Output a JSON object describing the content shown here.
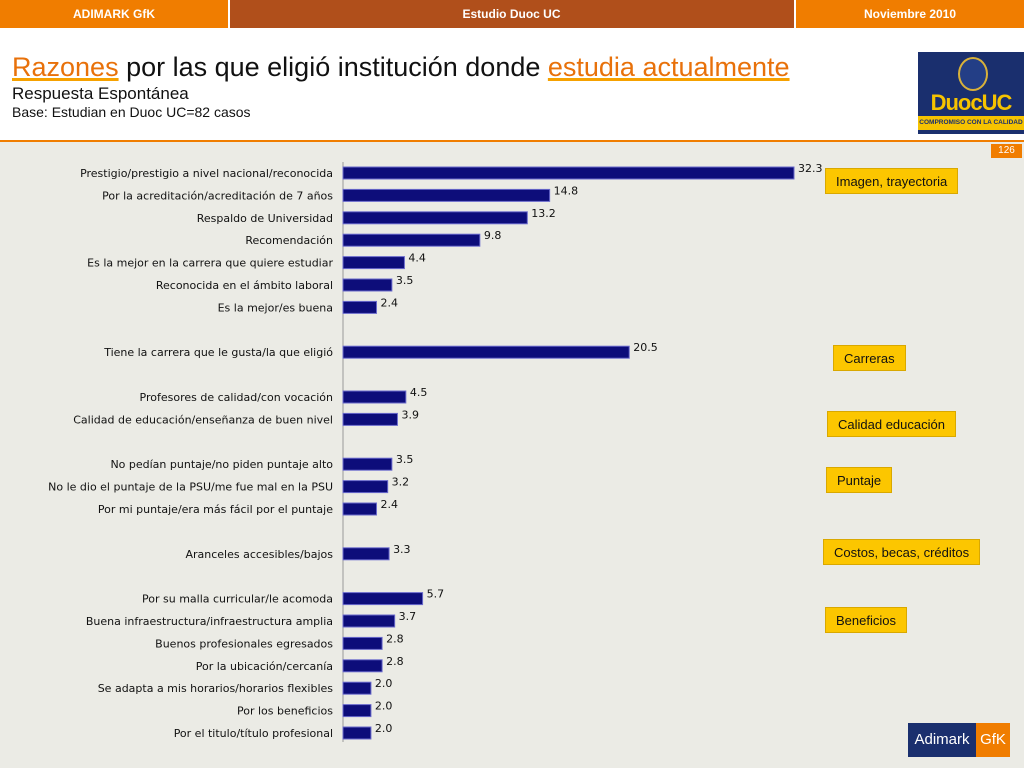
{
  "topbar": {
    "left": "ADIMARK GfK",
    "center": "Estudio Duoc UC",
    "right": "Noviembre 2010"
  },
  "header": {
    "title_part1": "Razones",
    "title_part2": " por las que eligió institución donde ",
    "title_part3": "estudia actualmente",
    "subtitle": "Respuesta Espontánea",
    "base": "Base: Estudian en Duoc UC=82 casos"
  },
  "logo": {
    "word": "DuocUC",
    "tagline": "COMPROMISO CON LA CALIDAD"
  },
  "page_number": "126",
  "groups": [
    {
      "label": "Imagen, trayectoria"
    },
    {
      "label": "Carreras"
    },
    {
      "label": "Calidad educación"
    },
    {
      "label": "Puntaje"
    },
    {
      "label": "Costos, becas, créditos"
    },
    {
      "label": "Beneficios"
    }
  ],
  "footer_logo": {
    "part_a": "Adimark",
    "part_b": "GfK"
  },
  "colors": {
    "orange": "#f07d00",
    "brown": "#b04f1b",
    "bar": "#0d0d7a",
    "group_box": "#fcc600",
    "background": "#ebebe5"
  },
  "chart_data": {
    "type": "bar",
    "orientation": "horizontal",
    "xlim": [
      0,
      32.3
    ],
    "categories": [
      "Prestigio/prestigio a nivel nacional/reconocida",
      "Por la acreditación/acreditación de 7 años",
      "Respaldo de Universidad",
      "Recomendación",
      "Es la mejor en la carrera que quiere estudiar",
      "Reconocida en el ámbito laboral",
      "Es la mejor/es buena",
      "",
      "Tiene la carrera que le gusta/la que eligió",
      "",
      "Profesores de calidad/con vocación",
      "Calidad de educación/enseñanza de buen nivel",
      "",
      "No pedían puntaje/no piden puntaje alto",
      "No le dio el puntaje de la PSU/me fue mal en la PSU",
      "Por mi puntaje/era más fácil por el puntaje",
      "",
      "Aranceles accesibles/bajos",
      "",
      "Por su malla curricular/le acomoda",
      "Buena infraestructura/infraestructura amplia",
      "Buenos profesionales egresados",
      "Por la ubicación/cercanía",
      "Se adapta a mis horarios/horarios flexibles",
      "Por los beneficios",
      "Por el titulo/título profesional"
    ],
    "values": [
      32.3,
      14.8,
      13.2,
      9.8,
      4.4,
      3.5,
      2.4,
      null,
      20.5,
      null,
      4.5,
      3.9,
      null,
      3.5,
      3.2,
      2.4,
      null,
      3.3,
      null,
      5.7,
      3.7,
      2.8,
      2.8,
      2.0,
      2.0,
      2.0
    ],
    "value_labels": [
      "32.3",
      "14.8",
      "13.2",
      "9.8",
      "4.4",
      "3.5",
      "2.4",
      "",
      "20.5",
      "",
      "4.5",
      "3.9",
      "",
      "3.5",
      "3.2",
      "2.4",
      "",
      "3.3",
      "",
      "5.7",
      "3.7",
      "2.8",
      "2.8",
      "2.0",
      "2.0",
      "2.0"
    ],
    "grid": false,
    "legend": "none"
  }
}
